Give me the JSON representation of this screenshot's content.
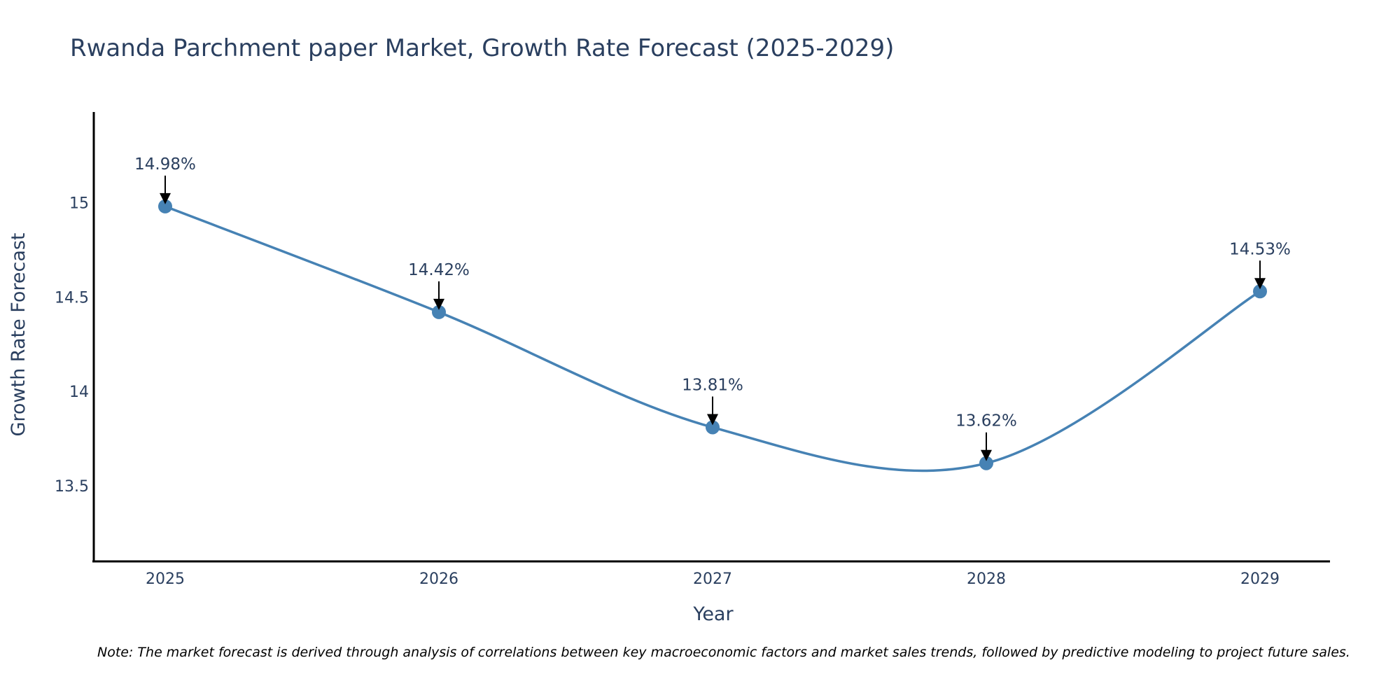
{
  "chart_data": {
    "type": "line",
    "title": "Rwanda Parchment paper Market, Growth Rate Forecast (2025-2029)",
    "xlabel": "Year",
    "ylabel": "Growth Rate Forecast",
    "categories": [
      "2025",
      "2026",
      "2027",
      "2028",
      "2029"
    ],
    "values": [
      14.98,
      14.42,
      13.81,
      13.62,
      14.53
    ],
    "data_labels": [
      "14.98%",
      "14.42%",
      "13.81%",
      "13.62%",
      "14.53%"
    ],
    "y_ticks": [
      13.5,
      14,
      14.5,
      15
    ],
    "y_tick_labels": [
      "13.5",
      "14",
      "14.5",
      "15"
    ],
    "ylim": [
      13.1,
      15.48
    ],
    "line_shape": "spline",
    "grid": false,
    "colors": {
      "line": "#4682b4",
      "marker": "#4682b4",
      "arrow": "#000000",
      "axis": "#000000"
    }
  },
  "note": "Note: The market forecast is derived through analysis of correlations between key macroeconomic factors and market sales trends, followed by predictive modeling to project future sales."
}
